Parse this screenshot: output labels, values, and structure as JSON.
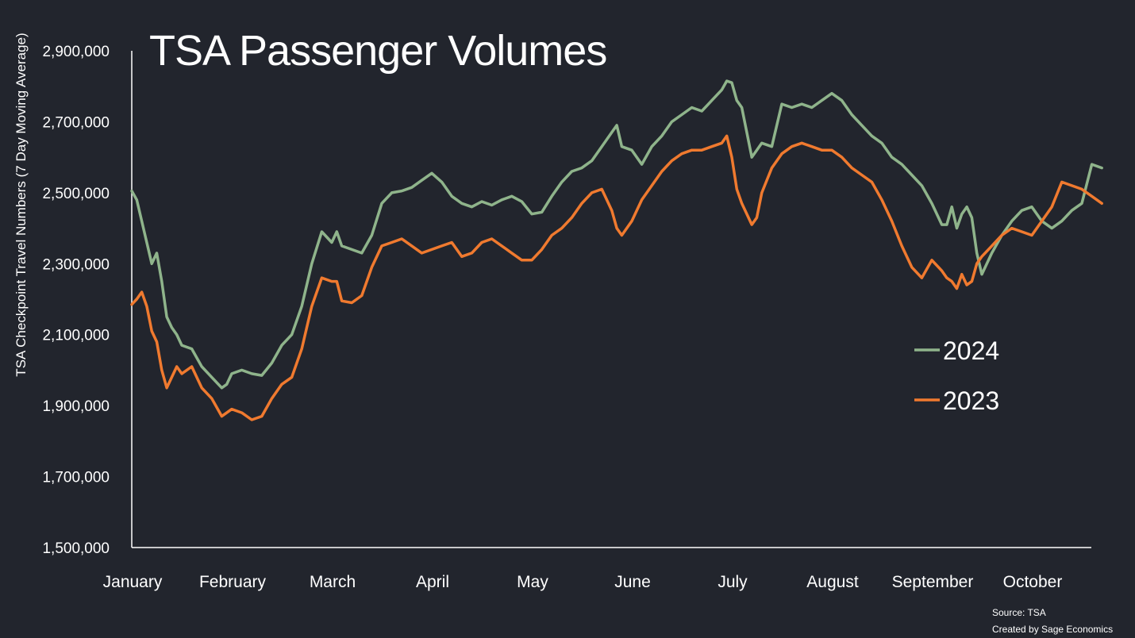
{
  "chart_data": {
    "type": "line",
    "title": "TSA Passenger Volumes",
    "xlabel": "",
    "ylabel": "TSA Checkpoint Travel Numbers (7 Day Moving Average)",
    "ylim": [
      1500000,
      2900000
    ],
    "yticks": [
      1500000,
      1700000,
      1900000,
      2100000,
      2300000,
      2500000,
      2700000,
      2900000
    ],
    "ytick_labels": [
      "1,500,000",
      "1,700,000",
      "1,900,000",
      "2,100,000",
      "2,300,000",
      "2,500,000",
      "2,700,000",
      "2,900,000"
    ],
    "xlim": [
      0,
      9.7
    ],
    "month_labels": [
      "January",
      "February",
      "March",
      "April",
      "May",
      "June",
      "July",
      "August",
      "September",
      "October"
    ],
    "legend_position": "right",
    "source": "Source: TSA",
    "credit": "Created by Sage Economics",
    "series": [
      {
        "name": "2024",
        "color": "#8fb48b",
        "x": [
          0.0,
          0.05,
          0.1,
          0.15,
          0.2,
          0.25,
          0.3,
          0.35,
          0.4,
          0.45,
          0.5,
          0.6,
          0.7,
          0.8,
          0.9,
          0.95,
          1.0,
          1.1,
          1.2,
          1.3,
          1.4,
          1.5,
          1.6,
          1.7,
          1.8,
          1.9,
          2.0,
          2.05,
          2.1,
          2.2,
          2.3,
          2.4,
          2.5,
          2.6,
          2.7,
          2.8,
          2.9,
          3.0,
          3.1,
          3.2,
          3.3,
          3.4,
          3.5,
          3.6,
          3.7,
          3.8,
          3.9,
          4.0,
          4.1,
          4.2,
          4.3,
          4.4,
          4.5,
          4.6,
          4.7,
          4.8,
          4.85,
          4.9,
          5.0,
          5.1,
          5.2,
          5.3,
          5.4,
          5.5,
          5.6,
          5.7,
          5.8,
          5.9,
          5.95,
          6.0,
          6.05,
          6.1,
          6.2,
          6.25,
          6.3,
          6.4,
          6.5,
          6.6,
          6.7,
          6.8,
          6.9,
          7.0,
          7.1,
          7.2,
          7.3,
          7.4,
          7.5,
          7.6,
          7.7,
          7.8,
          7.9,
          8.0,
          8.1,
          8.15,
          8.2,
          8.25,
          8.3,
          8.35,
          8.4,
          8.45,
          8.5,
          8.6,
          8.7,
          8.8,
          8.9,
          9.0,
          9.1,
          9.2,
          9.3,
          9.4,
          9.5,
          9.6,
          9.7
        ],
        "values": [
          2505000,
          2480000,
          2420000,
          2360000,
          2300000,
          2330000,
          2250000,
          2150000,
          2120000,
          2100000,
          2070000,
          2060000,
          2010000,
          1980000,
          1950000,
          1960000,
          1990000,
          2000000,
          1990000,
          1985000,
          2020000,
          2070000,
          2100000,
          2180000,
          2300000,
          2390000,
          2360000,
          2390000,
          2350000,
          2340000,
          2330000,
          2380000,
          2470000,
          2500000,
          2505000,
          2515000,
          2535000,
          2555000,
          2530000,
          2490000,
          2470000,
          2460000,
          2475000,
          2465000,
          2480000,
          2490000,
          2475000,
          2440000,
          2445000,
          2490000,
          2530000,
          2560000,
          2570000,
          2590000,
          2630000,
          2670000,
          2690000,
          2630000,
          2620000,
          2580000,
          2630000,
          2660000,
          2700000,
          2720000,
          2740000,
          2730000,
          2760000,
          2790000,
          2815000,
          2810000,
          2760000,
          2740000,
          2600000,
          2620000,
          2640000,
          2630000,
          2750000,
          2740000,
          2750000,
          2740000,
          2760000,
          2780000,
          2760000,
          2720000,
          2690000,
          2660000,
          2640000,
          2600000,
          2580000,
          2550000,
          2520000,
          2470000,
          2410000,
          2410000,
          2460000,
          2400000,
          2440000,
          2460000,
          2430000,
          2330000,
          2270000,
          2330000,
          2380000,
          2420000,
          2450000,
          2460000,
          2420000,
          2400000,
          2420000,
          2450000,
          2470000,
          2580000,
          2570000
        ]
      },
      {
        "name": "2023",
        "color": "#f07a2f",
        "x": [
          0.0,
          0.05,
          0.1,
          0.15,
          0.2,
          0.25,
          0.3,
          0.35,
          0.4,
          0.45,
          0.5,
          0.6,
          0.7,
          0.8,
          0.9,
          0.95,
          1.0,
          1.1,
          1.2,
          1.3,
          1.4,
          1.5,
          1.6,
          1.7,
          1.8,
          1.9,
          2.0,
          2.05,
          2.1,
          2.2,
          2.3,
          2.4,
          2.5,
          2.6,
          2.7,
          2.8,
          2.9,
          3.0,
          3.1,
          3.2,
          3.3,
          3.4,
          3.5,
          3.6,
          3.7,
          3.8,
          3.9,
          4.0,
          4.1,
          4.2,
          4.3,
          4.4,
          4.5,
          4.6,
          4.7,
          4.8,
          4.85,
          4.9,
          5.0,
          5.1,
          5.2,
          5.3,
          5.4,
          5.5,
          5.6,
          5.7,
          5.8,
          5.9,
          5.95,
          6.0,
          6.05,
          6.1,
          6.2,
          6.25,
          6.3,
          6.4,
          6.5,
          6.6,
          6.7,
          6.8,
          6.9,
          7.0,
          7.1,
          7.2,
          7.3,
          7.4,
          7.5,
          7.6,
          7.7,
          7.8,
          7.9,
          8.0,
          8.1,
          8.15,
          8.2,
          8.25,
          8.3,
          8.35,
          8.4,
          8.45,
          8.5,
          8.6,
          8.7,
          8.8,
          8.9,
          9.0,
          9.1,
          9.2,
          9.3,
          9.4,
          9.5,
          9.6,
          9.7
        ],
        "values": [
          2185000,
          2200000,
          2220000,
          2180000,
          2110000,
          2080000,
          2000000,
          1950000,
          1980000,
          2010000,
          1990000,
          2010000,
          1950000,
          1920000,
          1870000,
          1880000,
          1890000,
          1880000,
          1860000,
          1870000,
          1920000,
          1960000,
          1980000,
          2060000,
          2180000,
          2260000,
          2250000,
          2250000,
          2195000,
          2190000,
          2210000,
          2290000,
          2350000,
          2360000,
          2370000,
          2350000,
          2330000,
          2340000,
          2350000,
          2360000,
          2320000,
          2330000,
          2360000,
          2370000,
          2350000,
          2330000,
          2310000,
          2310000,
          2340000,
          2380000,
          2400000,
          2430000,
          2470000,
          2500000,
          2510000,
          2450000,
          2400000,
          2380000,
          2420000,
          2480000,
          2520000,
          2560000,
          2590000,
          2610000,
          2620000,
          2620000,
          2630000,
          2640000,
          2660000,
          2600000,
          2510000,
          2470000,
          2410000,
          2430000,
          2500000,
          2570000,
          2610000,
          2630000,
          2640000,
          2630000,
          2620000,
          2620000,
          2600000,
          2570000,
          2550000,
          2530000,
          2480000,
          2420000,
          2350000,
          2290000,
          2260000,
          2310000,
          2280000,
          2260000,
          2250000,
          2230000,
          2270000,
          2240000,
          2250000,
          2300000,
          2320000,
          2350000,
          2380000,
          2400000,
          2390000,
          2380000,
          2420000,
          2460000,
          2530000,
          2520000,
          2510000,
          2490000,
          2470000
        ]
      }
    ]
  }
}
